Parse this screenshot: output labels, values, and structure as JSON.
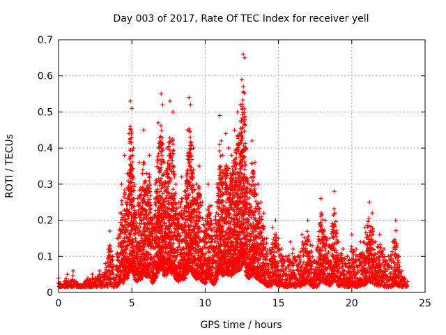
{
  "chart_data": {
    "type": "scatter",
    "title": "Day 003 of 2017, Rate Of TEC Index for receiver yell",
    "xlabel": "GPS time / hours",
    "ylabel": "ROTI / TECUs",
    "xlim": [
      0,
      25
    ],
    "ylim": [
      0,
      0.7
    ],
    "x_ticks": [
      "0",
      "5",
      "10",
      "15",
      "20",
      "25"
    ],
    "y_ticks": [
      "0",
      "0.1",
      "0.2",
      "0.3",
      "0.4",
      "0.5",
      "0.6",
      "0.7"
    ],
    "grid": true,
    "marker": "+",
    "color": "#ff0000",
    "points": [
      [
        0.0,
        0.04
      ],
      [
        0.2,
        0.02
      ],
      [
        0.4,
        0.03
      ],
      [
        0.6,
        0.05
      ],
      [
        0.8,
        0.03
      ],
      [
        1.0,
        0.06
      ],
      [
        1.2,
        0.03
      ],
      [
        1.5,
        0.02
      ],
      [
        1.8,
        0.03
      ],
      [
        2.0,
        0.04
      ],
      [
        2.3,
        0.05
      ],
      [
        2.5,
        0.04
      ],
      [
        2.8,
        0.06
      ],
      [
        3.0,
        0.05
      ],
      [
        3.2,
        0.08
      ],
      [
        3.4,
        0.12
      ],
      [
        3.5,
        0.17
      ],
      [
        3.7,
        0.1
      ],
      [
        3.9,
        0.07
      ],
      [
        4.0,
        0.15
      ],
      [
        4.2,
        0.22
      ],
      [
        4.3,
        0.3
      ],
      [
        4.4,
        0.18
      ],
      [
        4.5,
        0.38
      ],
      [
        4.6,
        0.25
      ],
      [
        4.7,
        0.33
      ],
      [
        4.8,
        0.44
      ],
      [
        4.9,
        0.53
      ],
      [
        5.0,
        0.51
      ],
      [
        5.1,
        0.4
      ],
      [
        5.2,
        0.3
      ],
      [
        5.3,
        0.22
      ],
      [
        5.4,
        0.26
      ],
      [
        5.5,
        0.36
      ],
      [
        5.6,
        0.29
      ],
      [
        5.8,
        0.45
      ],
      [
        6.0,
        0.33
      ],
      [
        6.2,
        0.38
      ],
      [
        6.4,
        0.2
      ],
      [
        6.6,
        0.3
      ],
      [
        6.8,
        0.47
      ],
      [
        7.0,
        0.55
      ],
      [
        7.1,
        0.52
      ],
      [
        7.2,
        0.36
      ],
      [
        7.4,
        0.4
      ],
      [
        7.6,
        0.53
      ],
      [
        7.7,
        0.42
      ],
      [
        7.8,
        0.5
      ],
      [
        8.0,
        0.3
      ],
      [
        8.2,
        0.25
      ],
      [
        8.4,
        0.32
      ],
      [
        8.6,
        0.28
      ],
      [
        8.8,
        0.45
      ],
      [
        8.9,
        0.54
      ],
      [
        9.0,
        0.52
      ],
      [
        9.2,
        0.4
      ],
      [
        9.4,
        0.3
      ],
      [
        9.6,
        0.35
      ],
      [
        9.8,
        0.25
      ],
      [
        10.0,
        0.2
      ],
      [
        10.2,
        0.3
      ],
      [
        10.4,
        0.24
      ],
      [
        10.6,
        0.18
      ],
      [
        10.8,
        0.3
      ],
      [
        11.0,
        0.49
      ],
      [
        11.1,
        0.42
      ],
      [
        11.2,
        0.38
      ],
      [
        11.4,
        0.44
      ],
      [
        11.6,
        0.4
      ],
      [
        11.8,
        0.38
      ],
      [
        12.0,
        0.45
      ],
      [
        12.2,
        0.5
      ],
      [
        12.4,
        0.52
      ],
      [
        12.5,
        0.59
      ],
      [
        12.6,
        0.66
      ],
      [
        12.7,
        0.65
      ],
      [
        12.8,
        0.4
      ],
      [
        13.0,
        0.3
      ],
      [
        13.2,
        0.42
      ],
      [
        13.4,
        0.36
      ],
      [
        13.6,
        0.3
      ],
      [
        13.8,
        0.25
      ],
      [
        14.0,
        0.22
      ],
      [
        14.2,
        0.15
      ],
      [
        14.4,
        0.12
      ],
      [
        14.6,
        0.18
      ],
      [
        14.8,
        0.2
      ],
      [
        15.0,
        0.15
      ],
      [
        15.2,
        0.12
      ],
      [
        15.5,
        0.1
      ],
      [
        15.8,
        0.14
      ],
      [
        16.0,
        0.12
      ],
      [
        16.3,
        0.1
      ],
      [
        16.6,
        0.16
      ],
      [
        17.0,
        0.2
      ],
      [
        17.3,
        0.13
      ],
      [
        17.6,
        0.12
      ],
      [
        17.9,
        0.26
      ],
      [
        18.2,
        0.2
      ],
      [
        18.5,
        0.15
      ],
      [
        18.8,
        0.28
      ],
      [
        19.1,
        0.14
      ],
      [
        19.4,
        0.12
      ],
      [
        19.7,
        0.1
      ],
      [
        20.0,
        0.16
      ],
      [
        20.3,
        0.12
      ],
      [
        20.6,
        0.14
      ],
      [
        20.9,
        0.18
      ],
      [
        21.2,
        0.25
      ],
      [
        21.4,
        0.22
      ],
      [
        21.6,
        0.14
      ],
      [
        21.9,
        0.16
      ],
      [
        22.2,
        0.12
      ],
      [
        22.5,
        0.1
      ],
      [
        22.8,
        0.14
      ],
      [
        23.0,
        0.2
      ],
      [
        23.2,
        0.1
      ],
      [
        23.4,
        0.06
      ],
      [
        23.6,
        0.04
      ],
      [
        23.8,
        0.03
      ]
    ]
  }
}
